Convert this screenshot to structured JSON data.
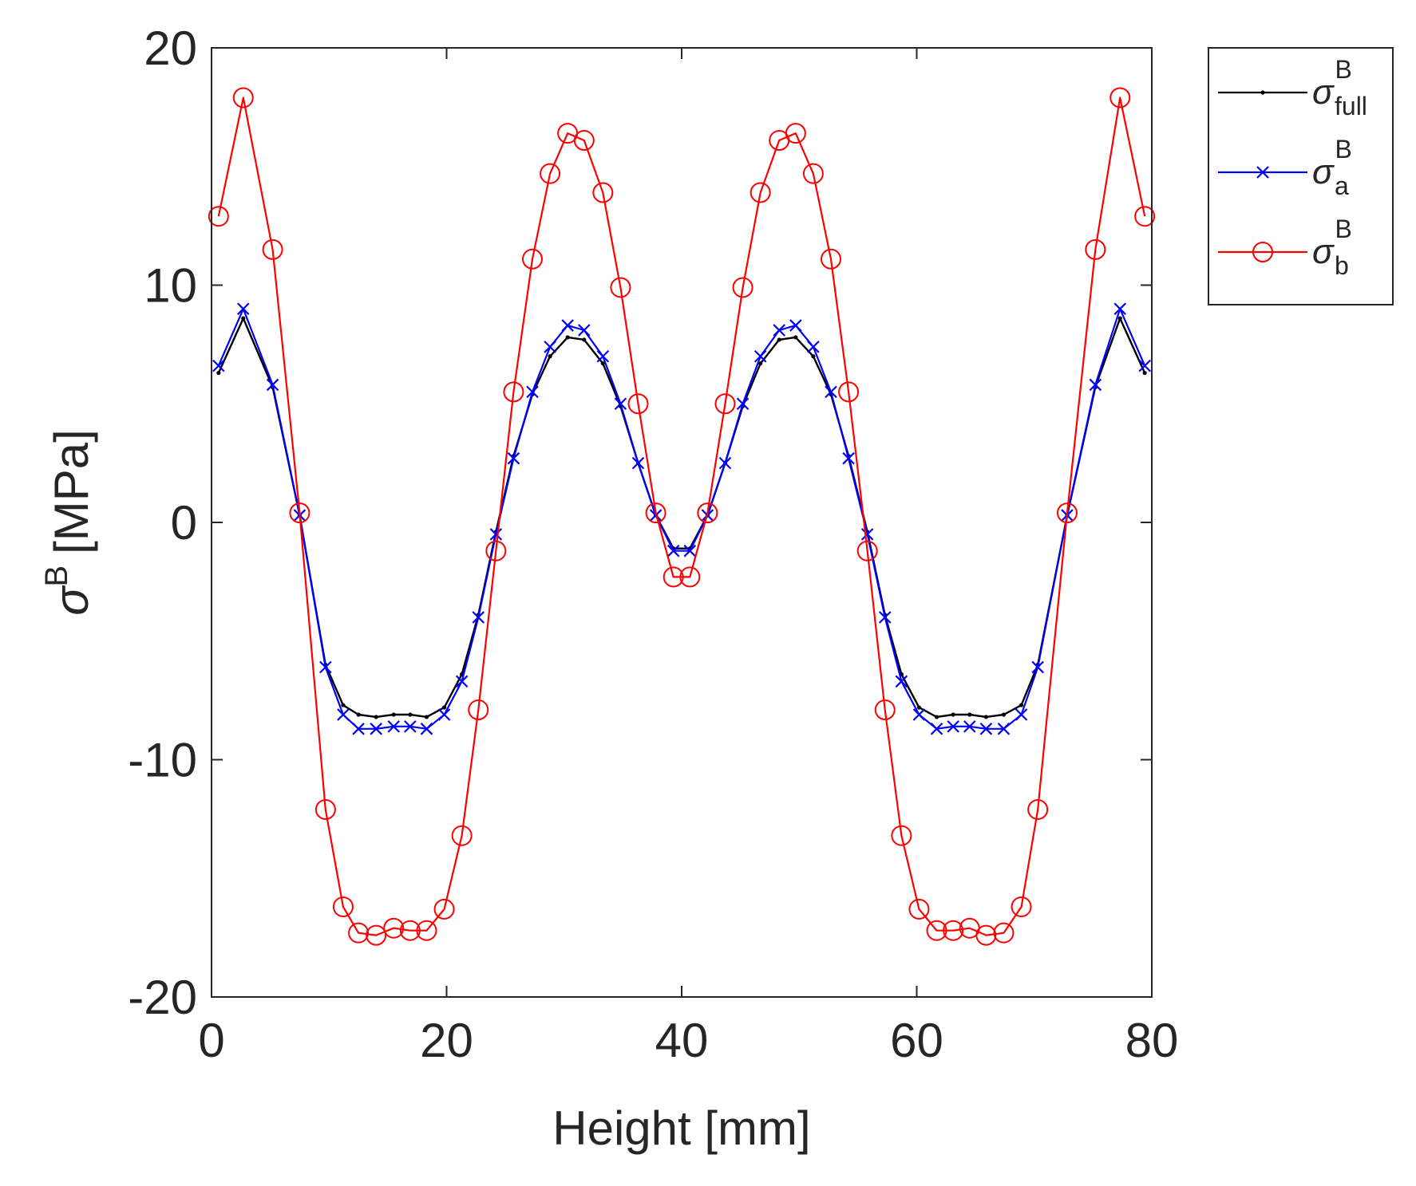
{
  "chart_data": {
    "type": "line",
    "title": "",
    "xlabel": "Height [mm]",
    "ylabel": {
      "symbol": "σ",
      "sup": "B",
      "unit": "[MPa]"
    },
    "xlim": [
      0,
      80
    ],
    "ylim": [
      -20,
      20
    ],
    "xticks": [
      0,
      20,
      40,
      60,
      80
    ],
    "yticks": [
      -20,
      -10,
      0,
      10,
      20
    ],
    "grid": false,
    "legend_position": "outside-top-right",
    "colors": {
      "full": "#000000",
      "a": "#0000ff",
      "b": "#ff0000",
      "axis": "#262626"
    },
    "x": [
      0.6,
      2.7,
      5.2,
      7.5,
      9.7,
      11.2,
      12.5,
      14.0,
      15.5,
      16.9,
      18.3,
      19.8,
      21.3,
      22.7,
      24.2,
      25.7,
      27.3,
      28.8,
      30.3,
      31.7,
      33.3,
      34.8,
      36.3,
      37.8,
      39.3,
      40.7,
      42.2,
      43.7,
      45.2,
      46.7,
      48.3,
      49.7,
      51.2,
      52.7,
      54.2,
      55.8,
      57.3,
      58.7,
      60.2,
      61.7,
      63.1,
      64.5,
      65.9,
      67.4,
      68.9,
      70.3,
      72.8,
      75.2,
      77.3,
      79.4
    ],
    "series": [
      {
        "key": "full",
        "legend_label": {
          "base": "σ",
          "sup": "B",
          "sub": "full"
        },
        "marker": "dot",
        "values": [
          6.3,
          8.6,
          5.7,
          0.3,
          -6.0,
          -7.7,
          -8.1,
          -8.2,
          -8.1,
          -8.1,
          -8.2,
          -7.8,
          -6.4,
          -3.9,
          -0.4,
          2.8,
          5.4,
          7.0,
          7.8,
          7.7,
          6.7,
          4.9,
          2.5,
          0.3,
          -1.1,
          -1.1,
          0.3,
          2.5,
          4.9,
          6.7,
          7.7,
          7.8,
          7.0,
          5.4,
          2.8,
          -0.4,
          -3.9,
          -6.4,
          -7.8,
          -8.2,
          -8.1,
          -8.1,
          -8.2,
          -8.1,
          -7.7,
          -6.0,
          0.3,
          5.7,
          8.6,
          6.3
        ]
      },
      {
        "key": "a",
        "legend_label": {
          "base": "σ",
          "sup": "B",
          "sub": "a"
        },
        "marker": "x",
        "values": [
          6.6,
          9.0,
          5.8,
          0.3,
          -6.1,
          -8.1,
          -8.7,
          -8.7,
          -8.6,
          -8.6,
          -8.7,
          -8.1,
          -6.7,
          -4.0,
          -0.5,
          2.7,
          5.5,
          7.4,
          8.3,
          8.1,
          7.0,
          5.0,
          2.5,
          0.3,
          -1.2,
          -1.2,
          0.3,
          2.5,
          5.0,
          7.0,
          8.1,
          8.3,
          7.4,
          5.5,
          2.7,
          -0.5,
          -4.0,
          -6.7,
          -8.1,
          -8.7,
          -8.6,
          -8.6,
          -8.7,
          -8.7,
          -8.1,
          -6.1,
          0.3,
          5.8,
          9.0,
          6.6
        ]
      },
      {
        "key": "b",
        "legend_label": {
          "base": "σ",
          "sup": "B",
          "sub": "b"
        },
        "marker": "circle",
        "values": [
          12.9,
          17.9,
          11.5,
          0.4,
          -12.1,
          -16.2,
          -17.3,
          -17.4,
          -17.1,
          -17.2,
          -17.2,
          -16.3,
          -13.2,
          -7.9,
          -1.2,
          5.5,
          11.1,
          14.7,
          16.4,
          16.1,
          13.9,
          9.9,
          5.0,
          0.4,
          -2.3,
          -2.3,
          0.4,
          5.0,
          9.9,
          13.9,
          16.1,
          16.4,
          14.7,
          11.1,
          5.5,
          -1.2,
          -7.9,
          -13.2,
          -16.3,
          -17.2,
          -17.2,
          -17.1,
          -17.4,
          -17.3,
          -16.2,
          -12.1,
          0.4,
          11.5,
          17.9,
          12.9
        ]
      }
    ]
  }
}
